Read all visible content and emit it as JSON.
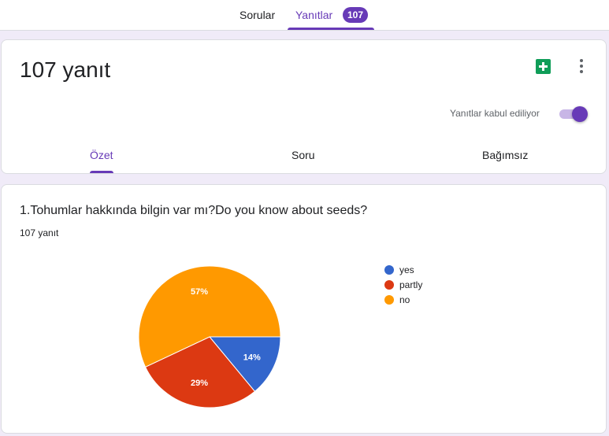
{
  "top_tabs": {
    "questions": "Sorular",
    "responses": "Yanıtlar",
    "responses_count": "107"
  },
  "summary": {
    "title": "107 yanıt",
    "accepting_label": "Yanıtlar kabul ediliyor",
    "accepting": true,
    "tabs": [
      "Özet",
      "Soru",
      "Bağımsız"
    ]
  },
  "question": {
    "title": "1.Tohumlar hakkında bilgin var mı?Do you know about seeds?",
    "response_count": "107 yanıt"
  },
  "chart_data": {
    "type": "pie",
    "labels": [
      "yes",
      "partly",
      "no"
    ],
    "values": [
      14,
      29,
      57
    ],
    "value_labels": [
      "14%",
      "29%",
      "57%"
    ],
    "colors": [
      "#3366cc",
      "#dc3912",
      "#ff9900"
    ],
    "legend_position": "right"
  }
}
